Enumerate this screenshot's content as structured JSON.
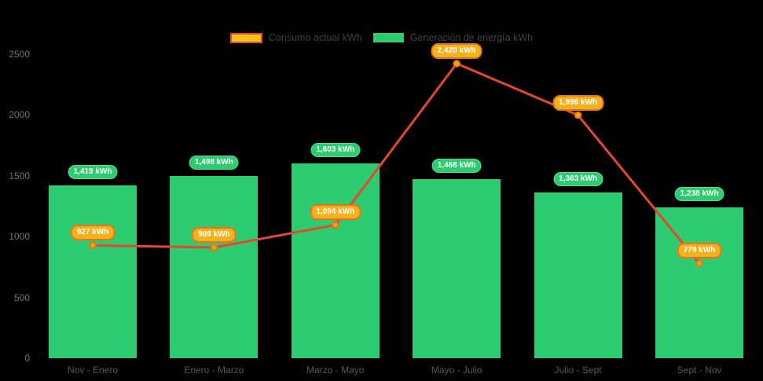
{
  "background": "#000000",
  "legend": {
    "items": [
      {
        "label": "Consumo actual kWh",
        "series": "consumo",
        "swatch": "line"
      },
      {
        "label": "Generación de energía kWh",
        "series": "generacion",
        "swatch": "bar"
      }
    ]
  },
  "colors": {
    "bar": "#2ECC71",
    "bar_badge_fill": "#2ECC71",
    "bar_badge_border": "#54DE93",
    "line": "#E5472F",
    "point_fill": "#F2A71B",
    "point_ring": "#ED7014",
    "line_badge_fill": "#F2B21D",
    "line_badge_border": "#EE7117",
    "badge_text": "#FFFFFF",
    "legend_line_swatch_fill": "#F2C21D",
    "legend_text": "#3F4247",
    "y_axis_text": "#6F7377",
    "x_axis_text": "#56595D"
  },
  "chart_data": {
    "type": "bar+line",
    "title": "",
    "categories": [
      "Nov - Enero",
      "Enero - Marzo",
      "Marzo - Mayo",
      "Mayo - Julio",
      "Julio - Sept",
      "Sept - Nov"
    ],
    "series": [
      {
        "name": "Consumo actual kWh",
        "type": "line",
        "color": "#E5472F",
        "values": [
          927,
          909,
          1094,
          2420,
          1996,
          779
        ],
        "point_labels": [
          "927 kWh",
          "909 kWh",
          "1,094 kWh",
          "2,420 kWh",
          "1,996 kWh",
          "779 kWh"
        ]
      },
      {
        "name": "Generación de energía kWh",
        "type": "bar",
        "color": "#2ECC71",
        "values": [
          1419,
          1498,
          1603,
          1468,
          1363,
          1238
        ],
        "point_labels": [
          "1,419 kWh",
          "1,498 kWh",
          "1,603 kWh",
          "1,468 kWh",
          "1,363 kWh",
          "1,238 kWh"
        ]
      }
    ],
    "xlabel": "",
    "ylabel": "",
    "ylim": [
      0,
      2500
    ],
    "yticks": [
      0,
      500,
      1000,
      1500,
      2000,
      2500
    ],
    "grid": false,
    "legend_position": "top-center"
  }
}
